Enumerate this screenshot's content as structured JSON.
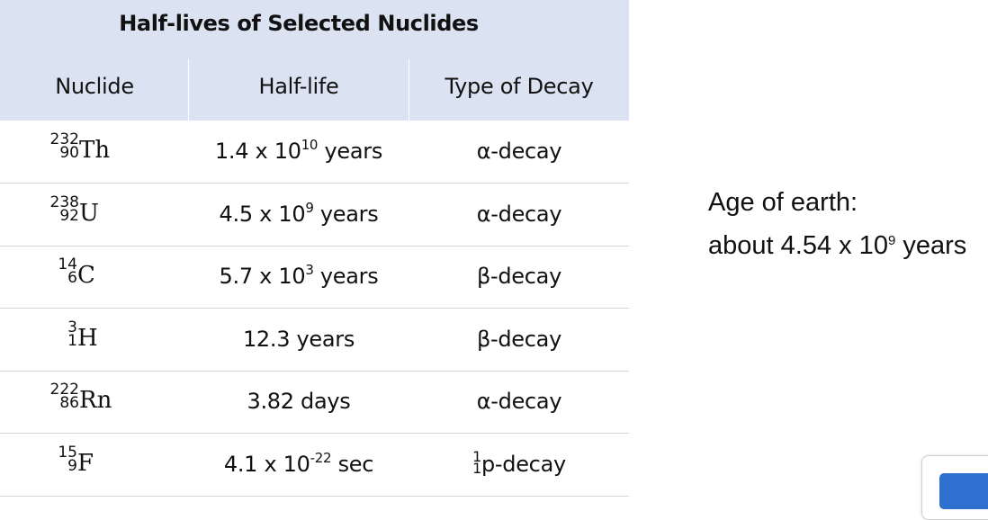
{
  "table": {
    "title": "Half-lives of Selected Nuclides",
    "headers": {
      "nuclide": "Nuclide",
      "half_life": "Half-life",
      "decay": "Type of Decay"
    },
    "rows": [
      {
        "mass": "232",
        "atomic": "90",
        "symbol": "Th",
        "half_life_base": "1.4 x 10",
        "half_life_exp": "10",
        "half_life_unit": " years",
        "decay_pre": "",
        "decay_pre_atomic": "",
        "decay": "α-decay"
      },
      {
        "mass": "238",
        "atomic": "92",
        "symbol": "U",
        "half_life_base": "4.5 x 10",
        "half_life_exp": "9",
        "half_life_unit": " years",
        "decay_pre": "",
        "decay_pre_atomic": "",
        "decay": "α-decay"
      },
      {
        "mass": "14",
        "atomic": "6",
        "symbol": "C",
        "half_life_base": "5.7 x 10",
        "half_life_exp": "3",
        "half_life_unit": " years",
        "decay_pre": "",
        "decay_pre_atomic": "",
        "decay": "β-decay"
      },
      {
        "mass": "3",
        "atomic": "1",
        "symbol": "H",
        "half_life_base": "12.3 years",
        "half_life_exp": "",
        "half_life_unit": "",
        "decay_pre": "",
        "decay_pre_atomic": "",
        "decay": "β-decay"
      },
      {
        "mass": "222",
        "atomic": "86",
        "symbol": "Rn",
        "half_life_base": "3.82 days",
        "half_life_exp": "",
        "half_life_unit": "",
        "decay_pre": "",
        "decay_pre_atomic": "",
        "decay": "α-decay"
      },
      {
        "mass": "15",
        "atomic": "9",
        "symbol": "F",
        "half_life_base": "4.1 x 10",
        "half_life_exp": "-22",
        "half_life_unit": " sec",
        "decay_pre": "1",
        "decay_pre_atomic": "1",
        "decay": "p-decay"
      }
    ]
  },
  "side_note": {
    "line1": "Age of earth:",
    "line2_base": "about 4.54 x 10",
    "line2_exp": "9",
    "line2_unit": " years"
  },
  "colors": {
    "header_band": "#dbe3f2",
    "row_divider": "#d6d6d6",
    "corner_icon": "#2f6fd0"
  }
}
